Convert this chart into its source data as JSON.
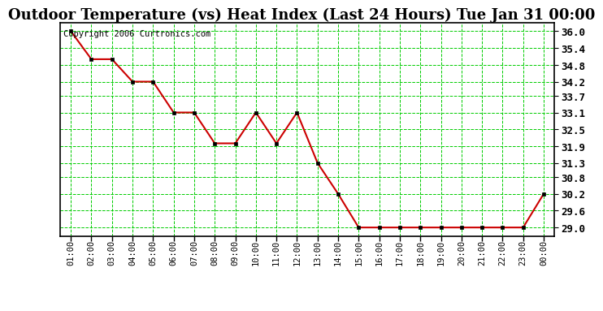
{
  "title": "Outdoor Temperature (vs) Heat Index (Last 24 Hours) Tue Jan 31 00:00",
  "copyright": "Copyright 2006 Curtronics.com",
  "x_labels": [
    "01:00",
    "02:00",
    "03:00",
    "04:00",
    "05:00",
    "06:00",
    "07:00",
    "08:00",
    "09:00",
    "10:00",
    "11:00",
    "12:00",
    "13:00",
    "14:00",
    "15:00",
    "16:00",
    "17:00",
    "18:00",
    "19:00",
    "20:00",
    "21:00",
    "22:00",
    "23:00",
    "00:00"
  ],
  "y_values": [
    36.0,
    35.0,
    35.0,
    34.2,
    34.2,
    33.1,
    33.1,
    32.0,
    32.0,
    33.1,
    32.0,
    33.1,
    31.3,
    30.2,
    29.0,
    29.0,
    29.0,
    29.0,
    29.0,
    29.0,
    29.0,
    29.0,
    29.0,
    30.2
  ],
  "ylim_min": 28.7,
  "ylim_max": 36.3,
  "yticks": [
    29.0,
    29.6,
    30.2,
    30.8,
    31.3,
    31.9,
    32.5,
    33.1,
    33.7,
    34.2,
    34.8,
    35.4,
    36.0
  ],
  "line_color": "#cc0000",
  "marker_color": "#000000",
  "bg_color": "#ffffff",
  "plot_bg_color": "#ffffff",
  "grid_color": "#00cc00",
  "title_fontsize": 13,
  "copyright_fontsize": 7.5,
  "tick_fontsize": 7.5,
  "ylabel_right_fontsize": 9
}
